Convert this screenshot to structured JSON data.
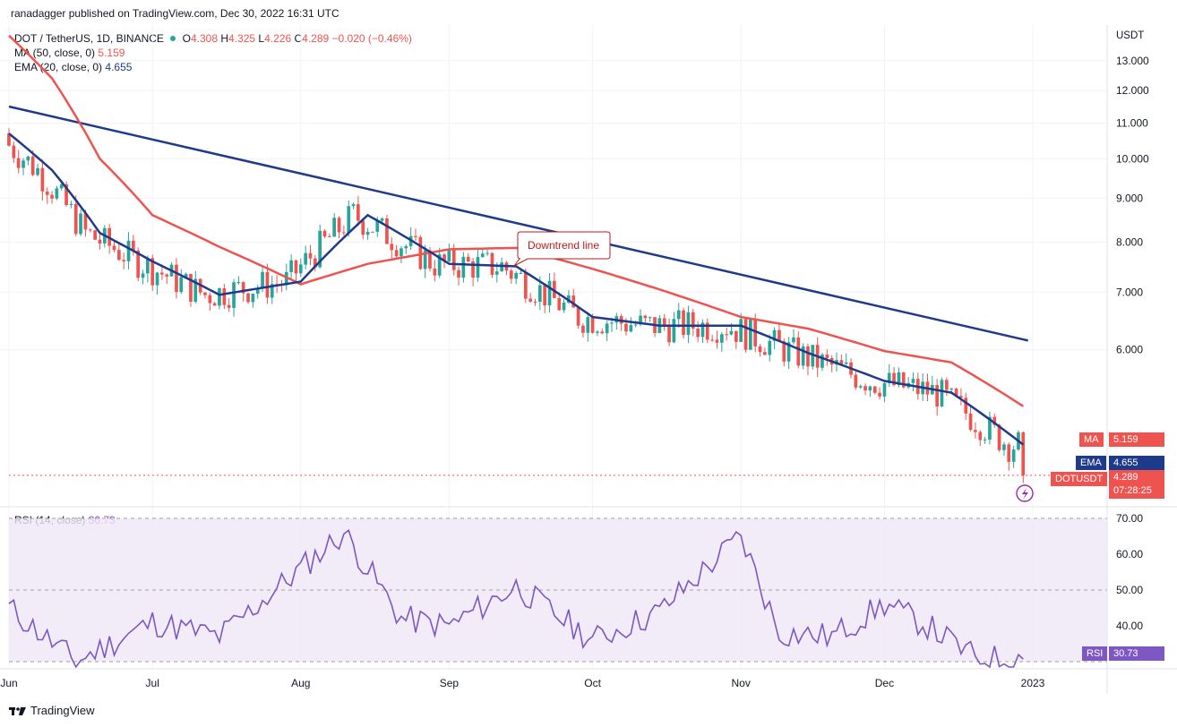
{
  "publisher": "ranadagger published on TradingView.com, Dec 30, 2022 16:31 UTC",
  "symbol_line": {
    "symbol": "DOT / TetherUS, 1D, BINANCE",
    "o_label": "O",
    "o": "4.308",
    "h_label": "H",
    "h": "4.325",
    "l_label": "L",
    "l": "4.226",
    "c_label": "C",
    "c": "4.289",
    "change": "−0.020 (−0.46%)"
  },
  "ma_line": {
    "label": "MA (50, close, 0)",
    "value": "5.159"
  },
  "ema_line": {
    "label": "EMA (20, close, 0)",
    "value": "4.655"
  },
  "rsi_line": {
    "label": "RSI (14, close)",
    "value": "30.73"
  },
  "currency": "USDT",
  "annotation": "Downtrend line",
  "tags": {
    "ma_label": "MA",
    "ma_value": "5.159",
    "ema_label": "EMA",
    "ema_value": "4.655",
    "symbol_label": "DOTUSDT",
    "price": "4.289",
    "countdown": "07:28:25",
    "rsi_label": "RSI",
    "rsi_value": "30.73"
  },
  "branding": "TradingView",
  "colors": {
    "up": "#26a69a",
    "down": "#ef5350",
    "ma": "#ef5350",
    "ema": "#1e3a8a",
    "trendline": "#1e3a8a",
    "rsi": "#7e57c2",
    "rsi_band": "#ede7f6"
  },
  "chart_data": [
    {
      "type": "candlestick",
      "title": "DOT / TetherUS, 1D, BINANCE",
      "ylabel": "USDT",
      "x_ticks": [
        "Jun",
        "Jul",
        "Aug",
        "Sep",
        "Oct",
        "Nov",
        "Dec",
        "2023"
      ],
      "y_ticks": [
        "6.000",
        "7.000",
        "8.000",
        "9.000",
        "10.000",
        "11.000",
        "12.000",
        "13.000"
      ],
      "y_scale": "log",
      "ylim": [
        4.0,
        14.3
      ],
      "grid": true,
      "series": [
        {
          "name": "MA (50, close, 0)",
          "x": [
            "2022-06-01",
            "2022-06-10",
            "2022-06-20",
            "2022-07-01",
            "2022-07-15",
            "2022-08-01",
            "2022-08-15",
            "2022-09-01",
            "2022-09-15",
            "2022-10-01",
            "2022-10-15",
            "2022-11-01",
            "2022-11-15",
            "2022-12-01",
            "2022-12-15",
            "2022-12-30"
          ],
          "values": [
            13.9,
            12.4,
            10.0,
            8.6,
            7.9,
            7.15,
            7.55,
            7.85,
            7.88,
            7.45,
            7.05,
            6.55,
            6.35,
            5.98,
            5.8,
            5.159
          ]
        },
        {
          "name": "EMA (20, close, 0)",
          "x": [
            "2022-06-01",
            "2022-06-10",
            "2022-06-20",
            "2022-07-01",
            "2022-07-15",
            "2022-08-01",
            "2022-08-15",
            "2022-09-01",
            "2022-09-15",
            "2022-10-01",
            "2022-10-15",
            "2022-11-01",
            "2022-11-15",
            "2022-12-01",
            "2022-12-15",
            "2022-12-30"
          ],
          "values": [
            10.7,
            9.7,
            8.2,
            7.6,
            6.95,
            7.2,
            8.6,
            7.55,
            7.5,
            6.55,
            6.4,
            6.4,
            5.95,
            5.52,
            5.35,
            4.655
          ]
        }
      ],
      "trendline": {
        "name": "Downtrend line",
        "start": [
          "2022-06-01",
          11.5
        ],
        "end": [
          "2022-12-31",
          6.15
        ]
      },
      "last": {
        "open": 4.308,
        "high": 4.325,
        "low": 4.226,
        "close": 4.289
      }
    },
    {
      "type": "line",
      "title": "RSI (14, close)",
      "y_ticks": [
        "40.00",
        "50.00",
        "60.00",
        "70.00"
      ],
      "ylim": [
        28,
        73
      ],
      "band": [
        30,
        70
      ],
      "series": [
        {
          "name": "RSI (14, close)",
          "x": [
            "2022-06-01",
            "2022-06-15",
            "2022-07-01",
            "2022-07-15",
            "2022-08-01",
            "2022-08-10",
            "2022-08-22",
            "2022-09-01",
            "2022-09-15",
            "2022-10-01",
            "2022-10-15",
            "2022-11-01",
            "2022-11-09",
            "2022-11-20",
            "2022-12-01",
            "2022-12-10",
            "2022-12-20",
            "2022-12-30"
          ],
          "values": [
            45,
            30,
            41,
            37,
            56,
            66,
            42,
            40,
            51,
            36,
            44,
            65,
            38,
            37,
            46,
            40,
            31,
            30.73
          ]
        }
      ]
    }
  ]
}
